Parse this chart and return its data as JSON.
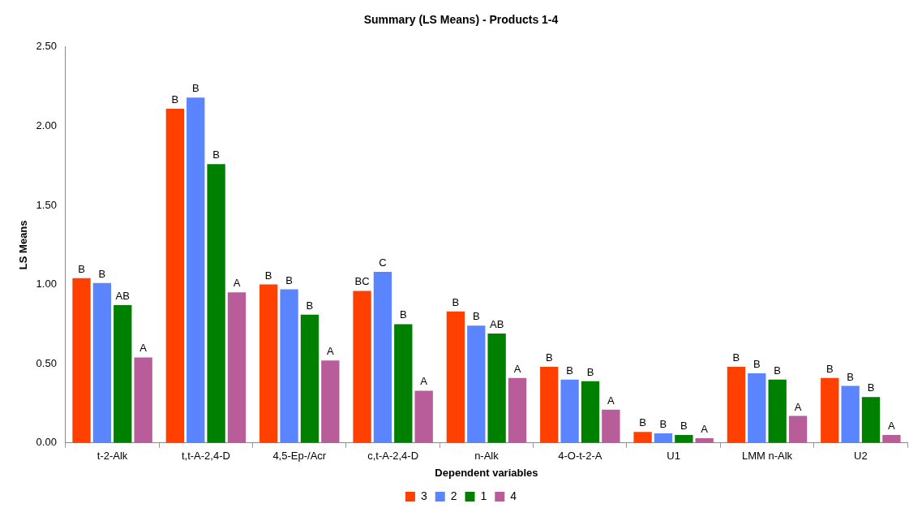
{
  "chart_data": {
    "type": "bar",
    "title": "Summary (LS Means) - Products 1-4",
    "xlabel": "Dependent variables",
    "ylabel": "LS Means",
    "categories": [
      "t-2-Alk",
      "t,t-A-2,4-D",
      "4,5-Ep-/Acr",
      "c,t-A-2,4-D",
      "n-Alk",
      "4-O-t-2-A",
      "U1",
      "LMM n-Alk",
      "U2"
    ],
    "series": [
      {
        "name": "3",
        "color": "#ff4000",
        "values": [
          1.04,
          2.11,
          1.0,
          0.96,
          0.83,
          0.48,
          0.07,
          0.48,
          0.41
        ],
        "value_labels": [
          "B",
          "B",
          "B",
          "BC",
          "B",
          "B",
          "B",
          "B",
          "B"
        ]
      },
      {
        "name": "2",
        "color": "#5b84ff",
        "values": [
          1.01,
          2.18,
          0.97,
          1.08,
          0.74,
          0.4,
          0.06,
          0.44,
          0.36
        ],
        "value_labels": [
          "B",
          "B",
          "B",
          "C",
          "B",
          "B",
          "B",
          "B",
          "B"
        ]
      },
      {
        "name": "1",
        "color": "#008000",
        "values": [
          0.87,
          1.76,
          0.81,
          0.75,
          0.69,
          0.39,
          0.05,
          0.4,
          0.29
        ],
        "value_labels": [
          "AB",
          "B",
          "B",
          "B",
          "AB",
          "B",
          "B",
          "B",
          "B"
        ]
      },
      {
        "name": "4",
        "color": "#b85c9a",
        "values": [
          0.54,
          0.95,
          0.52,
          0.33,
          0.41,
          0.21,
          0.03,
          0.17,
          0.05
        ],
        "value_labels": [
          "A",
          "A",
          "A",
          "A",
          "A",
          "A",
          "A",
          "A",
          "A"
        ]
      }
    ],
    "ylim": [
      0,
      2.5
    ],
    "yticks": [
      {
        "value": 0,
        "label": "0.00"
      },
      {
        "value": 0.5,
        "label": "0.50"
      },
      {
        "value": 1,
        "label": "1.00"
      },
      {
        "value": 1.5,
        "label": "1.50"
      },
      {
        "value": 2,
        "label": "2.00"
      },
      {
        "value": 2.5,
        "label": "2.50"
      }
    ],
    "grid": false,
    "legend": "bottom"
  }
}
